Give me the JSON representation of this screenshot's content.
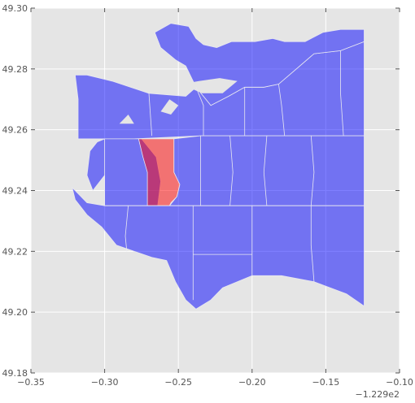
{
  "chart_data": {
    "type": "choropleth-map",
    "xlim": [
      -0.35,
      -0.1
    ],
    "ylim": [
      49.18,
      49.3
    ],
    "x_offset_label": "−1.229e2",
    "xticks": [
      {
        "value": -0.35,
        "label": "−0.35"
      },
      {
        "value": -0.3,
        "label": "−0.30"
      },
      {
        "value": -0.25,
        "label": "−0.25"
      },
      {
        "value": -0.2,
        "label": "−0.20"
      },
      {
        "value": -0.15,
        "label": "−0.15"
      },
      {
        "value": -0.1,
        "label": "−0.10"
      }
    ],
    "yticks": [
      {
        "value": 49.18,
        "label": "49.18"
      },
      {
        "value": 49.2,
        "label": "49.20"
      },
      {
        "value": 49.22,
        "label": "49.22"
      },
      {
        "value": 49.24,
        "label": "49.24"
      },
      {
        "value": 49.26,
        "label": "49.26"
      },
      {
        "value": 49.28,
        "label": "49.28"
      },
      {
        "value": 49.3,
        "label": "49.30"
      }
    ],
    "grid": true,
    "colors": {
      "plot_background": "#e5e5e5",
      "default_region": "#0000ff",
      "highlighted_region": "#ff0000"
    },
    "regions": [
      {
        "highlighted": false,
        "outline": [
          [
            -0.295,
            49.276
          ],
          [
            -0.27,
            49.272
          ],
          [
            -0.245,
            49.271
          ],
          [
            -0.238,
            49.274
          ],
          [
            -0.228,
            49.268
          ],
          [
            -0.216,
            49.271
          ],
          [
            -0.205,
            49.274
          ],
          [
            -0.192,
            49.274
          ],
          [
            -0.182,
            49.275
          ],
          [
            -0.17,
            49.28
          ],
          [
            -0.158,
            49.285
          ],
          [
            -0.14,
            49.286
          ],
          [
            -0.124,
            49.289
          ],
          [
            -0.124,
            49.258
          ],
          [
            -0.19,
            49.258
          ],
          [
            -0.235,
            49.258
          ],
          [
            -0.28,
            49.257
          ],
          [
            -0.3,
            49.257
          ],
          [
            -0.318,
            49.257
          ],
          [
            -0.318,
            49.27
          ],
          [
            -0.32,
            49.278
          ],
          [
            -0.312,
            49.278
          ]
        ]
      },
      {
        "highlighted": false,
        "outline": [
          [
            -0.266,
            49.292
          ],
          [
            -0.255,
            49.295
          ],
          [
            -0.243,
            49.294
          ],
          [
            -0.238,
            49.29
          ],
          [
            -0.233,
            49.288
          ],
          [
            -0.224,
            49.287
          ],
          [
            -0.214,
            49.289
          ],
          [
            -0.198,
            49.289
          ],
          [
            -0.186,
            49.29
          ],
          [
            -0.178,
            49.289
          ],
          [
            -0.164,
            49.289
          ],
          [
            -0.152,
            49.292
          ],
          [
            -0.14,
            49.293
          ],
          [
            -0.124,
            49.293
          ],
          [
            -0.124,
            49.289
          ],
          [
            -0.14,
            49.286
          ],
          [
            -0.158,
            49.285
          ],
          [
            -0.17,
            49.28
          ],
          [
            -0.182,
            49.275
          ],
          [
            -0.192,
            49.274
          ],
          [
            -0.205,
            49.274
          ],
          [
            -0.216,
            49.271
          ],
          [
            -0.228,
            49.268
          ],
          [
            -0.238,
            49.274
          ],
          [
            -0.245,
            49.281
          ],
          [
            -0.252,
            49.283
          ],
          [
            -0.262,
            49.287
          ]
        ]
      },
      {
        "highlighted": false,
        "outline": [
          [
            -0.3,
            49.257
          ],
          [
            -0.28,
            49.257
          ],
          [
            -0.275,
            49.257
          ],
          [
            -0.265,
            49.251
          ],
          [
            -0.262,
            49.243
          ],
          [
            -0.264,
            49.235
          ],
          [
            -0.3,
            49.235
          ],
          [
            -0.3,
            49.245
          ],
          [
            -0.308,
            49.24
          ],
          [
            -0.312,
            49.245
          ],
          [
            -0.31,
            49.253
          ],
          [
            -0.305,
            49.256
          ]
        ]
      },
      {
        "highlighted": true,
        "outline": [
          [
            -0.277,
            49.257
          ],
          [
            -0.253,
            49.257
          ],
          [
            -0.253,
            49.246
          ],
          [
            -0.249,
            49.242
          ],
          [
            -0.251,
            49.238
          ],
          [
            -0.255,
            49.236
          ],
          [
            -0.256,
            49.235
          ],
          [
            -0.271,
            49.235
          ],
          [
            -0.271,
            49.246
          ],
          [
            -0.274,
            49.251
          ]
        ]
      },
      {
        "highlighted": false,
        "outline": [
          [
            -0.253,
            49.257
          ],
          [
            -0.235,
            49.258
          ],
          [
            -0.19,
            49.258
          ],
          [
            -0.124,
            49.258
          ],
          [
            -0.124,
            49.235
          ],
          [
            -0.2,
            49.235
          ],
          [
            -0.24,
            49.235
          ],
          [
            -0.256,
            49.235
          ],
          [
            -0.251,
            49.238
          ],
          [
            -0.249,
            49.242
          ],
          [
            -0.253,
            49.246
          ]
        ]
      },
      {
        "highlighted": false,
        "outline": [
          [
            -0.322,
            49.241
          ],
          [
            -0.312,
            49.236
          ],
          [
            -0.3,
            49.235
          ],
          [
            -0.271,
            49.235
          ],
          [
            -0.24,
            49.235
          ],
          [
            -0.2,
            49.235
          ],
          [
            -0.124,
            49.235
          ],
          [
            -0.124,
            49.202
          ],
          [
            -0.136,
            49.206
          ],
          [
            -0.158,
            49.21
          ],
          [
            -0.18,
            49.212
          ],
          [
            -0.2,
            49.212
          ],
          [
            -0.22,
            49.208
          ],
          [
            -0.228,
            49.204
          ],
          [
            -0.238,
            49.201
          ],
          [
            -0.245,
            49.204
          ],
          [
            -0.252,
            49.21
          ],
          [
            -0.258,
            49.217
          ],
          [
            -0.268,
            49.218
          ],
          [
            -0.28,
            49.22
          ],
          [
            -0.292,
            49.222
          ],
          [
            -0.302,
            49.228
          ],
          [
            -0.312,
            49.232
          ],
          [
            -0.32,
            49.237
          ]
        ]
      }
    ],
    "boundaries": [
      [
        [
          -0.3,
          49.257
        ],
        [
          -0.3,
          49.235
        ]
      ],
      [
        [
          -0.238,
          49.274
        ],
        [
          -0.233,
          49.268
        ],
        [
          -0.233,
          49.258
        ]
      ],
      [
        [
          -0.182,
          49.275
        ],
        [
          -0.18,
          49.268
        ],
        [
          -0.178,
          49.258
        ]
      ],
      [
        [
          -0.14,
          49.286
        ],
        [
          -0.14,
          49.272
        ],
        [
          -0.138,
          49.258
        ]
      ],
      [
        [
          -0.27,
          49.272
        ],
        [
          -0.268,
          49.258
        ]
      ],
      [
        [
          -0.205,
          49.274
        ],
        [
          -0.205,
          49.266
        ],
        [
          -0.205,
          49.258
        ]
      ],
      [
        [
          -0.235,
          49.258
        ],
        [
          -0.235,
          49.235
        ]
      ],
      [
        [
          -0.215,
          49.258
        ],
        [
          -0.213,
          49.246
        ],
        [
          -0.215,
          49.235
        ]
      ],
      [
        [
          -0.19,
          49.258
        ],
        [
          -0.192,
          49.246
        ],
        [
          -0.19,
          49.235
        ]
      ],
      [
        [
          -0.16,
          49.258
        ],
        [
          -0.158,
          49.246
        ],
        [
          -0.16,
          49.235
        ]
      ],
      [
        [
          -0.24,
          49.235
        ],
        [
          -0.24,
          49.219
        ],
        [
          -0.24,
          49.204
        ]
      ],
      [
        [
          -0.2,
          49.235
        ],
        [
          -0.2,
          49.222
        ],
        [
          -0.2,
          49.212
        ]
      ],
      [
        [
          -0.16,
          49.235
        ],
        [
          -0.16,
          49.222
        ],
        [
          -0.158,
          49.21
        ]
      ],
      [
        [
          -0.24,
          49.219
        ],
        [
          -0.2,
          49.219
        ]
      ],
      [
        [
          -0.284,
          49.235
        ],
        [
          -0.286,
          49.225
        ],
        [
          -0.285,
          49.22
        ]
      ]
    ],
    "inlets": [
      [
        [
          -0.248,
          49.275
        ],
        [
          -0.234,
          49.272
        ],
        [
          -0.22,
          49.272
        ],
        [
          -0.21,
          49.276
        ],
        [
          -0.222,
          49.277
        ],
        [
          -0.236,
          49.276
        ]
      ],
      [
        [
          -0.262,
          49.266
        ],
        [
          -0.256,
          49.27
        ],
        [
          -0.25,
          49.268
        ],
        [
          -0.255,
          49.265
        ]
      ],
      [
        [
          -0.29,
          49.262
        ],
        [
          -0.284,
          49.265
        ],
        [
          -0.28,
          49.262
        ]
      ]
    ]
  }
}
